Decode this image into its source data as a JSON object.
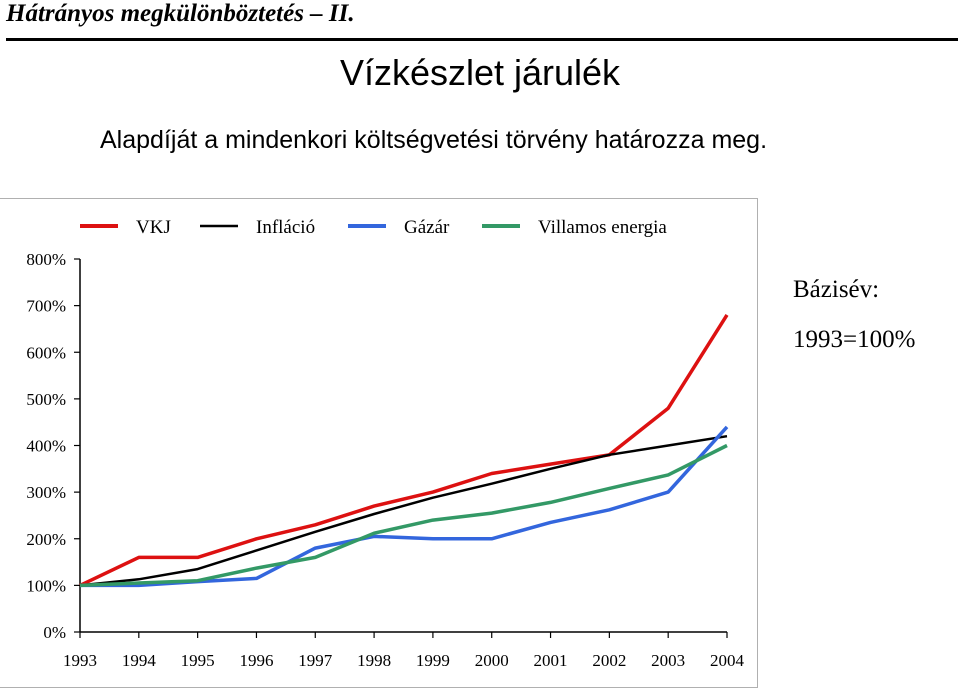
{
  "header": {
    "title": "Hátrányos megkülönböztetés – II."
  },
  "slide": {
    "title": "Vízkészlet járulék",
    "subtitle": "Alapdíját a mindenkori költségvetési törvény határozza meg."
  },
  "note": {
    "line1": "Bázisév:",
    "line2": "1993=100%"
  },
  "chart_data": {
    "type": "line",
    "categories": [
      "1993",
      "1994",
      "1995",
      "1996",
      "1997",
      "1998",
      "1999",
      "2000",
      "2001",
      "2002",
      "2003",
      "2004"
    ],
    "series": [
      {
        "name": "VKJ",
        "color": "#dd1111",
        "values": [
          100,
          160,
          160,
          200,
          230,
          270,
          300,
          340,
          360,
          380,
          480,
          680
        ]
      },
      {
        "name": "Infláció",
        "color": "#000000",
        "values": [
          100,
          113,
          135,
          175,
          215,
          253,
          288,
          318,
          350,
          380,
          400,
          420
        ]
      },
      {
        "name": "Gázár",
        "color": "#3366dd",
        "values": [
          100,
          100,
          108,
          115,
          180,
          205,
          200,
          200,
          235,
          262,
          300,
          440
        ]
      },
      {
        "name": "Villamos energia",
        "color": "#339966",
        "values": [
          100,
          105,
          110,
          137,
          160,
          212,
          240,
          255,
          278,
          308,
          337,
          400
        ]
      }
    ],
    "yticks": [
      "0%",
      "100%",
      "200%",
      "300%",
      "400%",
      "500%",
      "600%",
      "700%",
      "800%"
    ],
    "ylim": [
      0,
      800
    ],
    "legend": "top",
    "grid": false
  }
}
